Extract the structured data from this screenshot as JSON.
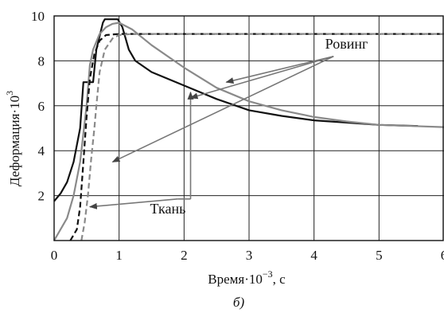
{
  "chart_data": {
    "type": "line",
    "xlabel": "Время·10",
    "xlabel_exp": "−3",
    "xlabel_unit": ", с",
    "ylabel": "Деформация·10",
    "ylabel_exp": "3",
    "caption": "б)",
    "xlim": [
      0,
      6
    ],
    "ylim": [
      0,
      10
    ],
    "grid": true,
    "x_ticks": [
      0,
      1,
      2,
      3,
      4,
      5,
      6
    ],
    "y_ticks": [
      2,
      4,
      6,
      8,
      10
    ],
    "series": [
      {
        "style": "solid",
        "color": "#111111",
        "points": [
          [
            0,
            1.75
          ],
          [
            0.1,
            2.1
          ],
          [
            0.2,
            2.6
          ],
          [
            0.3,
            3.5
          ],
          [
            0.4,
            5.0
          ],
          [
            0.45,
            7.05
          ],
          [
            0.6,
            7.05
          ],
          [
            0.65,
            8.5
          ],
          [
            0.75,
            9.7
          ],
          [
            0.78,
            9.85
          ],
          [
            0.98,
            9.85
          ],
          [
            1.05,
            9.5
          ],
          [
            1.15,
            8.5
          ],
          [
            1.25,
            8.0
          ],
          [
            1.5,
            7.5
          ],
          [
            2.0,
            6.9
          ],
          [
            2.5,
            6.3
          ],
          [
            3.0,
            5.8
          ],
          [
            3.5,
            5.55
          ],
          [
            4.0,
            5.35
          ],
          [
            4.5,
            5.25
          ],
          [
            5.0,
            5.15
          ],
          [
            5.6,
            5.1
          ]
        ]
      },
      {
        "style": "solid",
        "color": "#8a8a8a",
        "points": [
          [
            0,
            0
          ],
          [
            0.2,
            1.0
          ],
          [
            0.3,
            2.0
          ],
          [
            0.4,
            3.5
          ],
          [
            0.5,
            6.0
          ],
          [
            0.55,
            7.8
          ],
          [
            0.6,
            8.5
          ],
          [
            0.7,
            9.2
          ],
          [
            0.8,
            9.5
          ],
          [
            0.9,
            9.65
          ],
          [
            1.0,
            9.7
          ],
          [
            1.2,
            9.4
          ],
          [
            1.5,
            8.7
          ],
          [
            2.0,
            7.7
          ],
          [
            2.5,
            6.8
          ],
          [
            3.0,
            6.2
          ],
          [
            3.5,
            5.8
          ],
          [
            4.0,
            5.5
          ],
          [
            4.5,
            5.3
          ],
          [
            5.0,
            5.15
          ],
          [
            5.5,
            5.1
          ],
          [
            6.0,
            5.05
          ]
        ]
      },
      {
        "style": "dashed",
        "color": "#111111",
        "points": [
          [
            0.25,
            0
          ],
          [
            0.35,
            0.5
          ],
          [
            0.4,
            1.5
          ],
          [
            0.45,
            3.5
          ],
          [
            0.5,
            5.5
          ],
          [
            0.55,
            7.2
          ],
          [
            0.62,
            8.3
          ],
          [
            0.7,
            8.9
          ],
          [
            0.8,
            9.15
          ],
          [
            1.0,
            9.2
          ],
          [
            2.0,
            9.2
          ],
          [
            3.0,
            9.2
          ],
          [
            4.0,
            9.2
          ],
          [
            5.0,
            9.2
          ],
          [
            6.0,
            9.2
          ]
        ]
      },
      {
        "style": "dashed",
        "color": "#8a8a8a",
        "points": [
          [
            0.42,
            0
          ],
          [
            0.47,
            0.8
          ],
          [
            0.52,
            2.0
          ],
          [
            0.57,
            3.6
          ],
          [
            0.62,
            5.0
          ],
          [
            0.65,
            6.0
          ],
          [
            0.7,
            7.5
          ],
          [
            0.78,
            8.5
          ],
          [
            0.9,
            9.0
          ],
          [
            1.0,
            9.15
          ],
          [
            1.2,
            9.2
          ],
          [
            2.0,
            9.2
          ],
          [
            4.0,
            9.2
          ],
          [
            6.0,
            9.2
          ]
        ]
      }
    ],
    "annotations": [
      {
        "text": "Ровинг",
        "x": 4.5,
        "y": 8.55,
        "arrows_from": [
          4.3,
          8.2
        ],
        "arrows_to": [
          [
            2.65,
            7.05
          ],
          [
            2.1,
            6.35
          ],
          [
            0.9,
            3.5
          ]
        ]
      },
      {
        "text": "Ткань",
        "x": 1.75,
        "y": 1.2,
        "arrows_from": [
          1.9,
          1.85
        ],
        "arrows_to": [
          [
            0.55,
            1.5
          ],
          [
            2.1,
            6.6
          ]
        ],
        "bend": [
          2.1,
          1.85
        ]
      }
    ]
  }
}
